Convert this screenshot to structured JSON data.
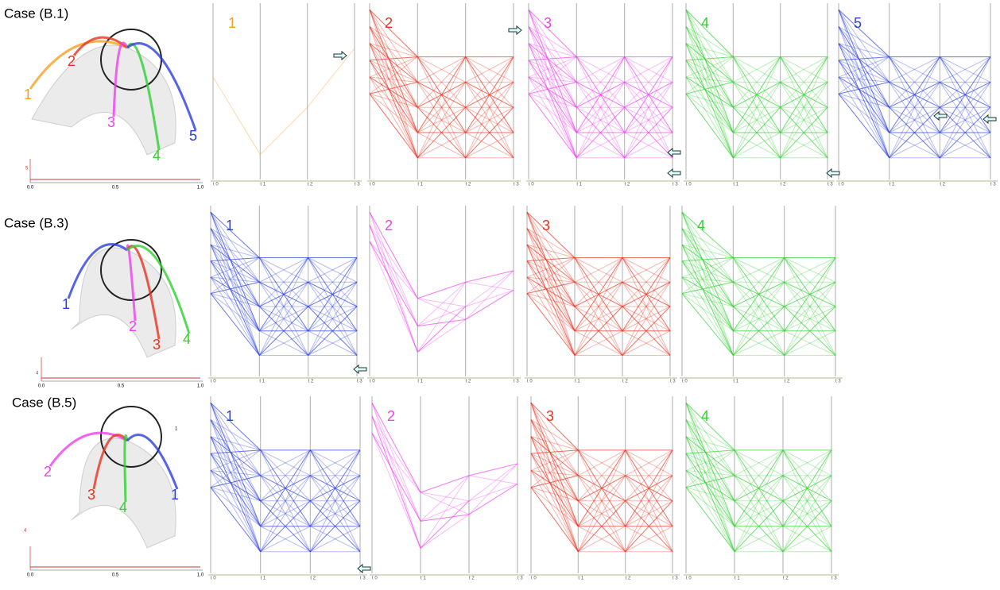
{
  "rows": [
    {
      "label": "Case (B.1)",
      "thumbnail": {
        "labels": [
          {
            "text": "1",
            "color": "#f5a020"
          },
          {
            "text": "2",
            "color": "#e8321e"
          },
          {
            "text": "3",
            "color": "#ee40ee"
          },
          {
            "text": "4",
            "color": "#30d030"
          },
          {
            "text": "5",
            "color": "#2a3ee0"
          }
        ],
        "axis": {
          "y_label": "5",
          "x_ticks": [
            "0.0",
            "0.5",
            "1.0"
          ]
        }
      },
      "panels": [
        {
          "label": "1",
          "color": "#f5a020",
          "axis_ticks": [
            "t 0",
            "t 1",
            "t 2",
            "t 3"
          ]
        },
        {
          "label": "2",
          "color": "#e8321e",
          "axis_ticks": [
            "t 0",
            "t 1",
            "t 2",
            "t 3"
          ]
        },
        {
          "label": "3",
          "color": "#ee40ee",
          "axis_ticks": [
            "t 0",
            "t 1",
            "t 2",
            "t 3"
          ]
        },
        {
          "label": "4",
          "color": "#30d030",
          "axis_ticks": [
            "t 0",
            "t 1",
            "t 2",
            "t 3"
          ]
        },
        {
          "label": "5",
          "color": "#2a3ee0",
          "axis_ticks": [
            "t 0",
            "t 1",
            "t 2",
            "t 3"
          ]
        }
      ]
    },
    {
      "label": "Case (B.3)",
      "thumbnail": {
        "labels": [
          {
            "text": "1",
            "color": "#2a3ee0"
          },
          {
            "text": "2",
            "color": "#ee40ee"
          },
          {
            "text": "3",
            "color": "#e8321e"
          },
          {
            "text": "4",
            "color": "#30d030"
          }
        ],
        "axis": {
          "y_label": "4",
          "x_ticks": [
            "0.0",
            "0.5",
            "1.0"
          ]
        }
      },
      "panels": [
        {
          "label": "1",
          "color": "#2a3ee0",
          "axis_ticks": [
            "t 0",
            "t 1",
            "t 2",
            "t 3"
          ]
        },
        {
          "label": "2",
          "color": "#ee40ee",
          "axis_ticks": [
            "t 0",
            "t 1",
            "t 2",
            "t 3"
          ]
        },
        {
          "label": "3",
          "color": "#e8321e",
          "axis_ticks": [
            "t 0",
            "t 1",
            "t 2",
            "t 3"
          ]
        },
        {
          "label": "4",
          "color": "#30d030",
          "axis_ticks": [
            "t 0",
            "t 1",
            "t 2",
            "t 3"
          ]
        }
      ]
    },
    {
      "label": "Case (B.5)",
      "note": "1",
      "thumbnail": {
        "labels": [
          {
            "text": "2",
            "color": "#ee40ee"
          },
          {
            "text": "3",
            "color": "#e8321e"
          },
          {
            "text": "4",
            "color": "#30d030"
          },
          {
            "text": "1",
            "color": "#2a3ee0"
          }
        ],
        "axis": {
          "y_label": "4",
          "x_ticks": [
            "0.0",
            "0.5",
            "1.0"
          ]
        }
      },
      "panels": [
        {
          "label": "1",
          "color": "#2a3ee0",
          "axis_ticks": [
            "t 0",
            "t 1",
            "t 2",
            "t 3"
          ]
        },
        {
          "label": "2",
          "color": "#ee40ee",
          "axis_ticks": [
            "t 0",
            "t 1",
            "t 2",
            "t 3"
          ]
        },
        {
          "label": "3",
          "color": "#e8321e",
          "axis_ticks": [
            "t 0",
            "t 1",
            "t 2",
            "t 3"
          ]
        },
        {
          "label": "4",
          "color": "#30d030",
          "axis_ticks": [
            "t 0",
            "t 1",
            "t 2",
            "t 3"
          ]
        }
      ]
    }
  ]
}
